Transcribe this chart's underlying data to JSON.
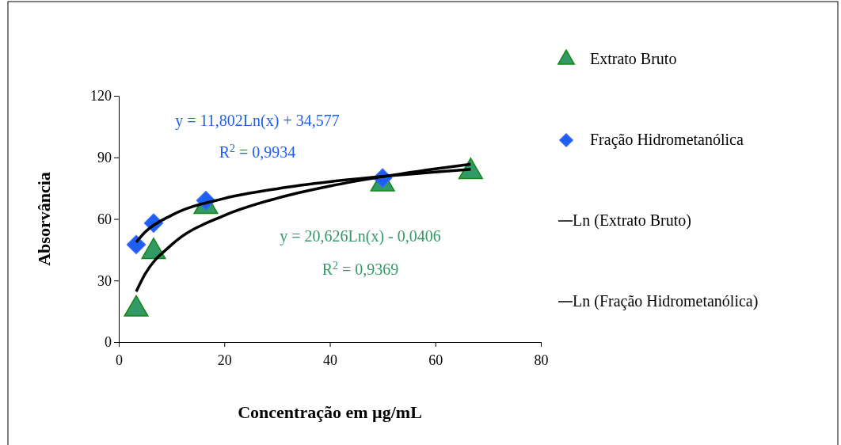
{
  "chart_data": {
    "type": "scatter",
    "xlabel": "Concentração em µg/mL",
    "ylabel": "Absorvância",
    "xlim": [
      0,
      80
    ],
    "xticks": [
      0,
      20,
      40,
      60,
      80
    ],
    "ylim": [
      0,
      120
    ],
    "yticks": [
      0,
      30,
      60,
      90,
      120
    ],
    "grid": false,
    "legend": "right",
    "series": [
      {
        "name": "Extrato Bruto",
        "marker": "triangle",
        "color": "#339966",
        "x": [
          3.3,
          6.6,
          16.5,
          50,
          66.7
        ],
        "values": [
          16,
          44,
          66,
          77,
          83
        ]
      },
      {
        "name": "Fração Hidrometanólica",
        "marker": "diamond",
        "color": "#1f5ff0",
        "x": [
          3.3,
          6.6,
          16.5,
          50
        ],
        "values": [
          47.5,
          58,
          69,
          80
        ]
      },
      {
        "name": "Ln (Extrato Bruto)",
        "type": "line",
        "marker": "none",
        "color": "#000000",
        "x": [
          3.3,
          5,
          10,
          20,
          30,
          40,
          50,
          60,
          66.7
        ],
        "values": [
          24.6,
          33.2,
          47.4,
          61.7,
          70.1,
          76,
          80.6,
          84.4,
          86.7
        ]
      },
      {
        "name": "Ln (Fração Hidrometanólica)",
        "type": "line",
        "marker": "none",
        "color": "#000000",
        "x": [
          3.3,
          5,
          10,
          20,
          30,
          40,
          50,
          60,
          66.7
        ],
        "values": [
          48.7,
          53.6,
          61.8,
          70,
          74.7,
          78.1,
          80.7,
          82.9,
          84.2
        ]
      }
    ],
    "annotations": [
      "y = 11,802Ln(x) + 34,577",
      "R$^{2}$ = 0,9934",
      "y = 20,626Ln(x) - 0,0406",
      "R$^{2}$ = 0,9369"
    ]
  }
}
